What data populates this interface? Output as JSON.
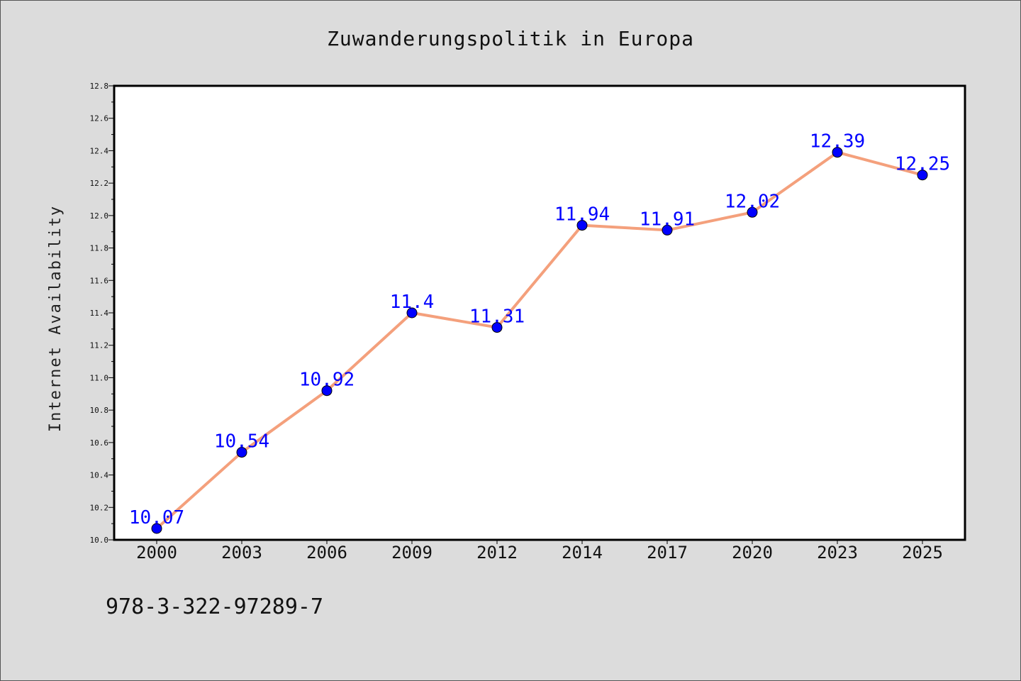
{
  "chart_data": {
    "type": "line",
    "title": "Zuwanderungspolitik in Europa",
    "xlabel": "",
    "ylabel": "Internet Availability",
    "categories": [
      "2000",
      "2003",
      "2006",
      "2009",
      "2012",
      "2014",
      "2017",
      "2020",
      "2023",
      "2025"
    ],
    "values": [
      10.07,
      10.54,
      10.92,
      11.4,
      11.31,
      11.94,
      11.91,
      12.02,
      12.39,
      12.25
    ],
    "data_labels": [
      "10.07",
      "10.54",
      "10.92",
      "11.4",
      "11.31",
      "11.94",
      "11.91",
      "12.02",
      "12.39",
      "12.25"
    ],
    "ylim": [
      10.0,
      12.8
    ],
    "yticks": [
      "10.0",
      "10.2",
      "10.4",
      "10.6",
      "10.8",
      "11.0",
      "11.2",
      "11.4",
      "11.6",
      "11.8",
      "12.0",
      "12.2",
      "12.4",
      "12.6",
      "12.8"
    ],
    "grid": false,
    "line_color": "#f4a07c",
    "marker_color": "#0000ff",
    "label_color": "#0000ff"
  },
  "footer": {
    "isbn": "978-3-322-97289-7"
  }
}
